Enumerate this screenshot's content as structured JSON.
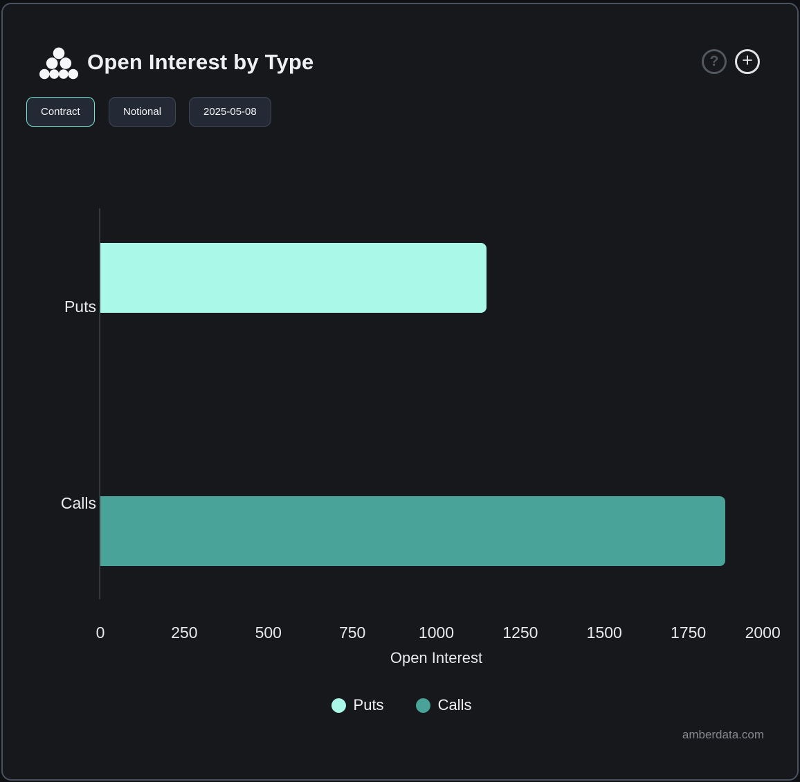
{
  "header": {
    "title": "Open Interest by Type",
    "help_glyph": "?",
    "add_glyph": "+"
  },
  "toolbar": {
    "buttons": [
      {
        "label": "Contract",
        "active": true
      },
      {
        "label": "Notional",
        "active": false
      },
      {
        "label": "2025-05-08",
        "active": false
      }
    ]
  },
  "chart_data": {
    "type": "bar",
    "orientation": "horizontal",
    "title": "Open Interest by Type",
    "categories": [
      "Puts",
      "Calls"
    ],
    "series": [
      {
        "name": "Puts",
        "color": "#aaf8e8",
        "values": [
          1150,
          null
        ]
      },
      {
        "name": "Calls",
        "color": "#49a399",
        "values": [
          null,
          1860
        ]
      }
    ],
    "xlabel": "Open Interest",
    "xlim": [
      0,
      2000
    ],
    "xticks": [
      0,
      250,
      500,
      750,
      1000,
      1250,
      1500,
      1750,
      2000
    ],
    "grid": false,
    "legend_position": "bottom"
  },
  "footer": {
    "watermark": "amberdata.com"
  },
  "colors": {
    "background": "#17181c",
    "card_border": "#4a5161",
    "active_button_border": "#74e6d0",
    "puts_bar": "#aaf8e8",
    "calls_bar": "#49a399"
  }
}
